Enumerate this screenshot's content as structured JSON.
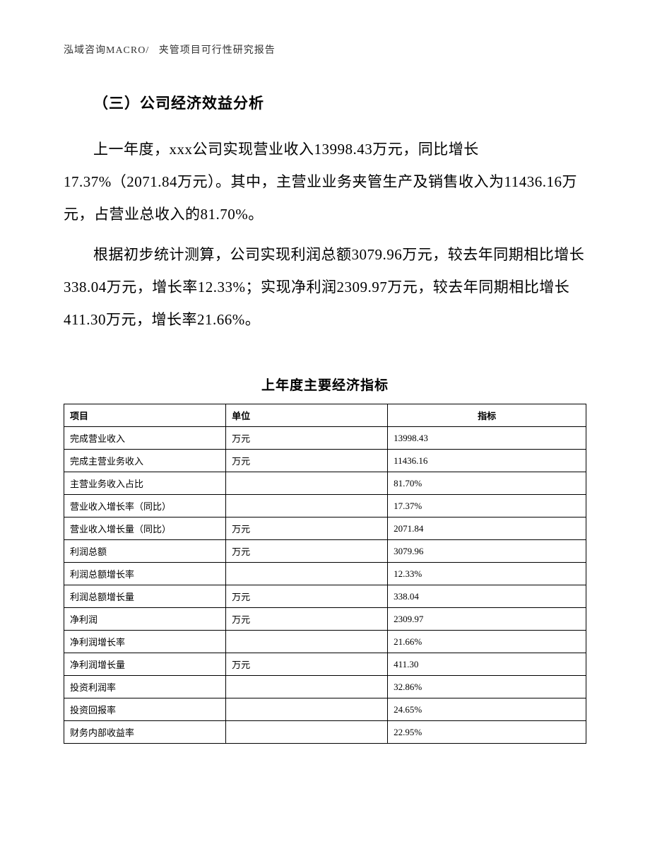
{
  "header": {
    "left": "泓域咨询MACRO/",
    "right": "夹管项目可行性研究报告"
  },
  "section": {
    "title": "（三）公司经济效益分析",
    "paragraph1": "上一年度，xxx公司实现营业收入13998.43万元，同比增长17.37%（2071.84万元）。其中，主营业业务夹管生产及销售收入为11436.16万元，占营业总收入的81.70%。",
    "paragraph2": "根据初步统计测算，公司实现利润总额3079.96万元，较去年同期相比增长338.04万元，增长率12.33%；实现净利润2309.97万元，较去年同期相比增长411.30万元，增长率21.66%。"
  },
  "table": {
    "title": "上年度主要经济指标",
    "columns": [
      "项目",
      "单位",
      "指标"
    ],
    "rows": [
      [
        "完成营业收入",
        "万元",
        "13998.43"
      ],
      [
        "完成主营业务收入",
        "万元",
        "11436.16"
      ],
      [
        "主营业务收入占比",
        "",
        "81.70%"
      ],
      [
        "营业收入增长率（同比）",
        "",
        "17.37%"
      ],
      [
        "营业收入增长量（同比）",
        "万元",
        "2071.84"
      ],
      [
        "利润总额",
        "万元",
        "3079.96"
      ],
      [
        "利润总额增长率",
        "",
        "12.33%"
      ],
      [
        "利润总额增长量",
        "万元",
        "338.04"
      ],
      [
        "净利润",
        "万元",
        "2309.97"
      ],
      [
        "净利润增长率",
        "",
        "21.66%"
      ],
      [
        "净利润增长量",
        "万元",
        "411.30"
      ],
      [
        "投资利润率",
        "",
        "32.86%"
      ],
      [
        "投资回报率",
        "",
        "24.65%"
      ],
      [
        "财务内部收益率",
        "",
        "22.95%"
      ]
    ]
  }
}
